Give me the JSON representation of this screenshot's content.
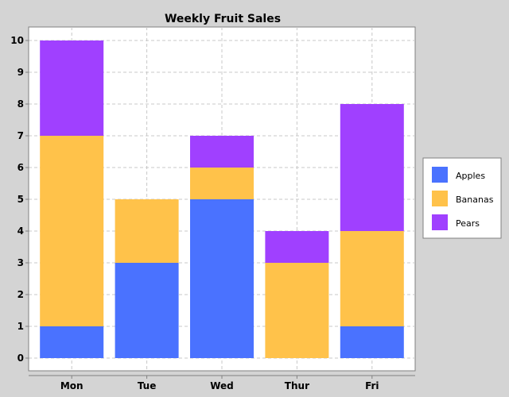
{
  "chart_data": {
    "type": "bar",
    "stacked": true,
    "title": "Weekly Fruit Sales",
    "xlabel": "",
    "ylabel": "",
    "categories": [
      "Mon",
      "Tue",
      "Wed",
      "Thur",
      "Fri"
    ],
    "series": [
      {
        "name": "Apples",
        "values": [
          1,
          3,
          5,
          0,
          1
        ],
        "color": "#4a72ff"
      },
      {
        "name": "Bananas",
        "values": [
          6,
          2,
          1,
          3,
          3
        ],
        "color": "#ffc24a"
      },
      {
        "name": "Pears",
        "values": [
          3,
          0,
          1,
          1,
          4
        ],
        "color": "#a040ff"
      }
    ],
    "ylim": [
      0,
      10
    ],
    "yticks": [
      "0",
      "1",
      "2",
      "3",
      "4",
      "5",
      "6",
      "7",
      "8",
      "9",
      "10"
    ],
    "grid": true,
    "legend": "right"
  },
  "colors": {
    "background": "#d4d4d4",
    "plot_background": "#ffffff",
    "grid": "#c8c8c8",
    "axis": "#808080"
  }
}
